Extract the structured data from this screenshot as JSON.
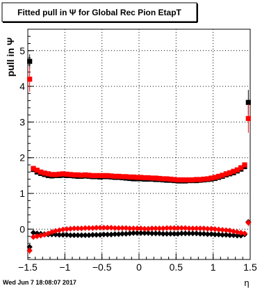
{
  "footer": {
    "timestamp": "Wed Jun  7 18:08:07 2017"
  },
  "chart_data": {
    "type": "scatter",
    "title": "Fitted pull in  Ψ  for Global Rec Pion EtapT",
    "xlabel": "η",
    "ylabel": "pull in  Ψ",
    "xlim": [
      -1.5,
      1.5
    ],
    "ylim": [
      -0.85,
      5.6
    ],
    "x_ticks": [
      -1.5,
      -1,
      -0.5,
      0,
      0.5,
      1,
      1.5
    ],
    "x_tick_labels": [
      "−1.5",
      "−1",
      "−0.5",
      "0",
      "0.5",
      "1",
      "1.5"
    ],
    "y_ticks": [
      0,
      1,
      2,
      3,
      4,
      5
    ],
    "y_tick_labels": [
      "0",
      "1",
      "2",
      "3",
      "4",
      "5"
    ],
    "grid": true,
    "legend": "none",
    "series": [
      {
        "color": "#000000",
        "marker": "square",
        "x": [
          -1.475,
          -1.425,
          -1.375,
          -1.325,
          -1.275,
          -1.225,
          -1.175,
          -1.125,
          -1.075,
          -1.025,
          -0.975,
          -0.925,
          -0.875,
          -0.825,
          -0.775,
          -0.725,
          -0.675,
          -0.625,
          -0.575,
          -0.525,
          -0.475,
          -0.425,
          -0.375,
          -0.325,
          -0.275,
          -0.225,
          -0.175,
          -0.125,
          -0.075,
          -0.025,
          0.025,
          0.075,
          0.125,
          0.175,
          0.225,
          0.275,
          0.325,
          0.375,
          0.425,
          0.475,
          0.525,
          0.575,
          0.625,
          0.675,
          0.725,
          0.775,
          0.825,
          0.875,
          0.925,
          0.975,
          1.025,
          1.075,
          1.125,
          1.175,
          1.225,
          1.275,
          1.325,
          1.375,
          1.425,
          1.475
        ],
        "values": [
          4.7,
          1.67,
          1.6,
          1.56,
          1.53,
          1.5,
          1.49,
          1.5,
          1.5,
          1.51,
          1.5,
          1.5,
          1.49,
          1.48,
          1.48,
          1.49,
          1.48,
          1.47,
          1.47,
          1.46,
          1.47,
          1.47,
          1.46,
          1.45,
          1.45,
          1.44,
          1.43,
          1.42,
          1.41,
          1.41,
          1.41,
          1.4,
          1.4,
          1.4,
          1.39,
          1.39,
          1.38,
          1.37,
          1.37,
          1.36,
          1.35,
          1.35,
          1.35,
          1.36,
          1.36,
          1.36,
          1.37,
          1.38,
          1.39,
          1.4,
          1.42,
          1.45,
          1.48,
          1.52,
          1.55,
          1.58,
          1.63,
          1.68,
          1.75,
          3.55
        ],
        "errors": [
          0.2,
          0.03,
          0.03,
          0.03,
          0.02,
          0.02,
          0.02,
          0.02,
          0.02,
          0.02,
          0.02,
          0.02,
          0.02,
          0.02,
          0.02,
          0.02,
          0.02,
          0.02,
          0.02,
          0.02,
          0.02,
          0.02,
          0.02,
          0.02,
          0.02,
          0.02,
          0.02,
          0.02,
          0.02,
          0.02,
          0.02,
          0.02,
          0.02,
          0.02,
          0.02,
          0.02,
          0.02,
          0.02,
          0.02,
          0.02,
          0.02,
          0.02,
          0.02,
          0.02,
          0.02,
          0.02,
          0.02,
          0.02,
          0.02,
          0.02,
          0.02,
          0.02,
          0.02,
          0.02,
          0.02,
          0.03,
          0.03,
          0.03,
          0.04,
          0.35
        ]
      },
      {
        "color": "#ff0000",
        "marker": "square",
        "x": [
          -1.475,
          -1.425,
          -1.375,
          -1.325,
          -1.275,
          -1.225,
          -1.175,
          -1.125,
          -1.075,
          -1.025,
          -0.975,
          -0.925,
          -0.875,
          -0.825,
          -0.775,
          -0.725,
          -0.675,
          -0.625,
          -0.575,
          -0.525,
          -0.475,
          -0.425,
          -0.375,
          -0.325,
          -0.275,
          -0.225,
          -0.175,
          -0.125,
          -0.075,
          -0.025,
          0.025,
          0.075,
          0.125,
          0.175,
          0.225,
          0.275,
          0.325,
          0.375,
          0.425,
          0.475,
          0.525,
          0.575,
          0.625,
          0.675,
          0.725,
          0.775,
          0.825,
          0.875,
          0.925,
          0.975,
          1.025,
          1.075,
          1.125,
          1.175,
          1.225,
          1.275,
          1.325,
          1.375,
          1.425,
          1.475
        ],
        "values": [
          4.2,
          1.7,
          1.65,
          1.6,
          1.57,
          1.55,
          1.53,
          1.53,
          1.54,
          1.55,
          1.54,
          1.53,
          1.52,
          1.52,
          1.51,
          1.52,
          1.51,
          1.5,
          1.5,
          1.5,
          1.5,
          1.5,
          1.49,
          1.48,
          1.48,
          1.47,
          1.47,
          1.46,
          1.46,
          1.45,
          1.45,
          1.44,
          1.44,
          1.43,
          1.43,
          1.42,
          1.41,
          1.41,
          1.4,
          1.39,
          1.38,
          1.38,
          1.38,
          1.38,
          1.38,
          1.39,
          1.39,
          1.4,
          1.41,
          1.43,
          1.45,
          1.48,
          1.51,
          1.55,
          1.58,
          1.62,
          1.66,
          1.72,
          1.8,
          3.1
        ],
        "errors": [
          0.35,
          0.04,
          0.03,
          0.03,
          0.02,
          0.02,
          0.02,
          0.02,
          0.02,
          0.02,
          0.02,
          0.02,
          0.02,
          0.02,
          0.02,
          0.02,
          0.02,
          0.02,
          0.02,
          0.02,
          0.02,
          0.02,
          0.02,
          0.02,
          0.02,
          0.02,
          0.02,
          0.02,
          0.02,
          0.02,
          0.02,
          0.02,
          0.02,
          0.02,
          0.02,
          0.02,
          0.02,
          0.02,
          0.02,
          0.02,
          0.02,
          0.02,
          0.02,
          0.02,
          0.02,
          0.02,
          0.02,
          0.02,
          0.02,
          0.02,
          0.02,
          0.02,
          0.02,
          0.02,
          0.02,
          0.03,
          0.03,
          0.03,
          0.05,
          0.4
        ]
      },
      {
        "color": "#000000",
        "marker": "diamond",
        "x": [
          -1.475,
          -1.425,
          -1.375,
          -1.325,
          -1.275,
          -1.225,
          -1.175,
          -1.125,
          -1.075,
          -1.025,
          -0.975,
          -0.925,
          -0.875,
          -0.825,
          -0.775,
          -0.725,
          -0.675,
          -0.625,
          -0.575,
          -0.525,
          -0.475,
          -0.425,
          -0.375,
          -0.325,
          -0.275,
          -0.225,
          -0.175,
          -0.125,
          -0.075,
          -0.025,
          0.025,
          0.075,
          0.125,
          0.175,
          0.225,
          0.275,
          0.325,
          0.375,
          0.425,
          0.475,
          0.525,
          0.575,
          0.625,
          0.675,
          0.725,
          0.775,
          0.825,
          0.875,
          0.925,
          0.975,
          1.025,
          1.075,
          1.125,
          1.175,
          1.225,
          1.275,
          1.325,
          1.375,
          1.425,
          1.475
        ],
        "values": [
          -0.5,
          -0.1,
          -0.12,
          -0.13,
          -0.14,
          -0.15,
          -0.15,
          -0.15,
          -0.16,
          -0.16,
          -0.16,
          -0.17,
          -0.17,
          -0.17,
          -0.17,
          -0.17,
          -0.17,
          -0.16,
          -0.16,
          -0.16,
          -0.15,
          -0.15,
          -0.15,
          -0.14,
          -0.14,
          -0.13,
          -0.13,
          -0.12,
          -0.11,
          -0.11,
          -0.11,
          -0.11,
          -0.11,
          -0.12,
          -0.12,
          -0.12,
          -0.13,
          -0.13,
          -0.13,
          -0.13,
          -0.13,
          -0.12,
          -0.12,
          -0.12,
          -0.12,
          -0.12,
          -0.13,
          -0.13,
          -0.14,
          -0.14,
          -0.15,
          -0.15,
          -0.16,
          -0.16,
          -0.17,
          -0.17,
          -0.18,
          -0.18,
          -0.15,
          0.2
        ],
        "errors": [
          0.08,
          0.03,
          0.02,
          0.02,
          0.02,
          0.02,
          0.02,
          0.02,
          0.02,
          0.02,
          0.02,
          0.02,
          0.02,
          0.02,
          0.02,
          0.02,
          0.02,
          0.02,
          0.02,
          0.02,
          0.02,
          0.02,
          0.02,
          0.02,
          0.02,
          0.02,
          0.02,
          0.02,
          0.02,
          0.02,
          0.02,
          0.02,
          0.02,
          0.02,
          0.02,
          0.02,
          0.02,
          0.02,
          0.02,
          0.02,
          0.02,
          0.02,
          0.02,
          0.02,
          0.02,
          0.02,
          0.02,
          0.02,
          0.02,
          0.02,
          0.02,
          0.02,
          0.02,
          0.02,
          0.02,
          0.02,
          0.02,
          0.02,
          0.03,
          0.08
        ]
      },
      {
        "color": "#ff0000",
        "marker": "diamond",
        "x": [
          -1.475,
          -1.425,
          -1.375,
          -1.325,
          -1.275,
          -1.225,
          -1.175,
          -1.125,
          -1.075,
          -1.025,
          -0.975,
          -0.925,
          -0.875,
          -0.825,
          -0.775,
          -0.725,
          -0.675,
          -0.625,
          -0.575,
          -0.525,
          -0.475,
          -0.425,
          -0.375,
          -0.325,
          -0.275,
          -0.225,
          -0.175,
          -0.125,
          -0.075,
          -0.025,
          0.025,
          0.075,
          0.125,
          0.175,
          0.225,
          0.275,
          0.325,
          0.375,
          0.425,
          0.475,
          0.525,
          0.575,
          0.625,
          0.675,
          0.725,
          0.775,
          0.825,
          0.875,
          0.925,
          0.975,
          1.025,
          1.075,
          1.125,
          1.175,
          1.225,
          1.275,
          1.325,
          1.375,
          1.425,
          1.475
        ],
        "values": [
          -0.6,
          -0.22,
          -0.2,
          -0.18,
          -0.16,
          -0.12,
          -0.08,
          -0.05,
          -0.03,
          -0.01,
          0.0,
          0.01,
          0.02,
          0.02,
          0.02,
          0.03,
          0.03,
          0.03,
          0.04,
          0.04,
          0.04,
          0.04,
          0.04,
          0.03,
          0.03,
          0.03,
          0.03,
          0.02,
          0.02,
          0.02,
          0.02,
          0.01,
          0.01,
          0.02,
          0.02,
          0.02,
          0.02,
          0.03,
          0.03,
          0.03,
          0.03,
          0.03,
          0.03,
          0.02,
          0.02,
          0.02,
          0.02,
          0.02,
          0.01,
          0.01,
          0.0,
          -0.01,
          -0.02,
          -0.03,
          -0.04,
          -0.06,
          -0.08,
          -0.1,
          -0.12,
          0.18
        ],
        "errors": [
          0.1,
          0.03,
          0.02,
          0.02,
          0.02,
          0.02,
          0.02,
          0.02,
          0.02,
          0.02,
          0.02,
          0.02,
          0.02,
          0.02,
          0.02,
          0.02,
          0.02,
          0.02,
          0.02,
          0.02,
          0.02,
          0.02,
          0.02,
          0.02,
          0.02,
          0.02,
          0.02,
          0.02,
          0.02,
          0.02,
          0.02,
          0.02,
          0.02,
          0.02,
          0.02,
          0.02,
          0.02,
          0.02,
          0.02,
          0.02,
          0.02,
          0.02,
          0.02,
          0.02,
          0.02,
          0.02,
          0.02,
          0.02,
          0.02,
          0.02,
          0.02,
          0.02,
          0.02,
          0.02,
          0.02,
          0.02,
          0.02,
          0.02,
          0.03,
          0.1
        ]
      }
    ]
  }
}
